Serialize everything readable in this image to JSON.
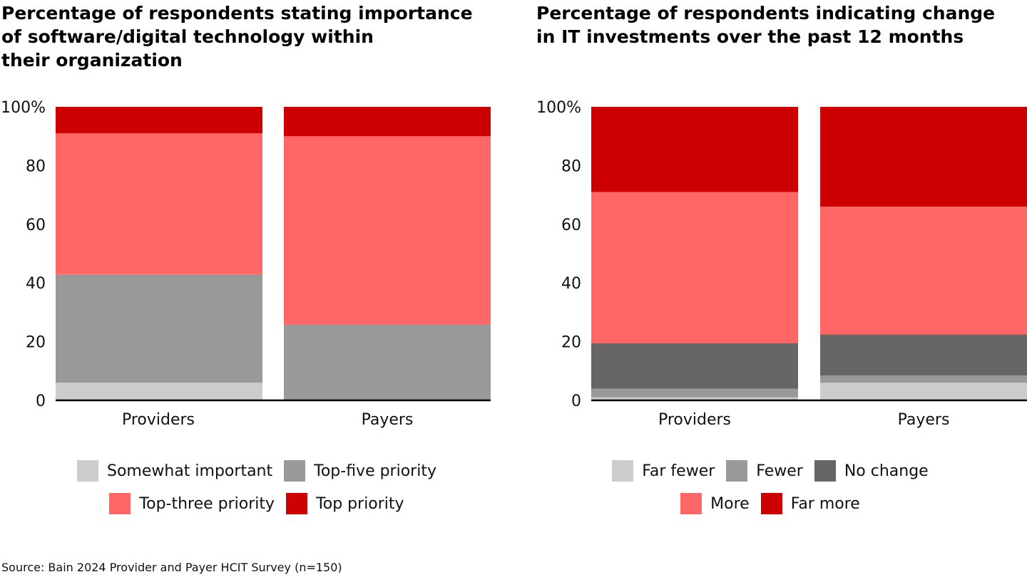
{
  "source": "Source: Bain 2024 Provider and Payer HCIT Survey (n=150)",
  "chart_data": [
    {
      "type": "bar",
      "stacked": true,
      "title": "Percentage of respondents stating importance\nof software/digital technology within\ntheir organization",
      "categories": [
        "Providers",
        "Payers"
      ],
      "ylim": [
        0,
        100
      ],
      "yticks": [
        0,
        20,
        40,
        60,
        80,
        100
      ],
      "ytick_labels": [
        "0",
        "20",
        "40",
        "60",
        "80",
        "100%"
      ],
      "legend_position": "bottom",
      "series": [
        {
          "name": "Somewhat important",
          "color": "#cccccc",
          "values": [
            6,
            0
          ]
        },
        {
          "name": "Top-five priority",
          "color": "#999999",
          "values": [
            37,
            26
          ]
        },
        {
          "name": "Top-three priority",
          "color": "#ff6666",
          "values": [
            48,
            64
          ]
        },
        {
          "name": "Top priority",
          "color": "#cc0000",
          "values": [
            9,
            10
          ]
        }
      ],
      "legend_rows": [
        [
          "Somewhat important",
          "Top-five priority"
        ],
        [
          "Top-three priority",
          "Top priority"
        ]
      ]
    },
    {
      "type": "bar",
      "stacked": true,
      "title": "Percentage of respondents indicating change\nin IT investments over the past 12 months",
      "categories": [
        "Providers",
        "Payers"
      ],
      "ylim": [
        0,
        100
      ],
      "yticks": [
        0,
        20,
        40,
        60,
        80,
        100
      ],
      "ytick_labels": [
        "0",
        "20",
        "40",
        "60",
        "80",
        "100%"
      ],
      "legend_position": "bottom",
      "series": [
        {
          "name": "Far fewer",
          "color": "#cccccc",
          "values": [
            1,
            6
          ]
        },
        {
          "name": "Fewer",
          "color": "#999999",
          "values": [
            3,
            2.5
          ]
        },
        {
          "name": "No change",
          "color": "#666666",
          "values": [
            15.5,
            14
          ]
        },
        {
          "name": "More",
          "color": "#ff6666",
          "values": [
            51.5,
            43.5
          ]
        },
        {
          "name": "Far more",
          "color": "#cc0000",
          "values": [
            29,
            34
          ]
        }
      ],
      "legend_rows": [
        [
          "Far fewer",
          "Fewer",
          "No change"
        ],
        [
          "More",
          "Far more"
        ]
      ]
    }
  ]
}
